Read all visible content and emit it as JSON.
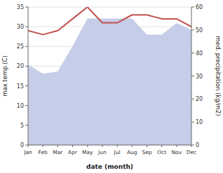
{
  "chart_data": {
    "type": "line",
    "x_label": "date (month)",
    "y_label": "max temp (C)",
    "y2_label": "med. precipitation (kg/m2)",
    "categories": [
      "Jan",
      "Feb",
      "Mar",
      "Apr",
      "May",
      "Jun",
      "Jul",
      "Aug",
      "Sep",
      "Oct",
      "Nov",
      "Dec"
    ],
    "series": [
      {
        "type": "area",
        "axis": "y2",
        "color": "#c5cde8",
        "values": [
          35,
          31,
          32,
          43,
          55,
          55,
          55,
          55,
          48,
          48,
          53,
          50
        ]
      },
      {
        "type": "line",
        "color": "#c0504d",
        "values": [
          29,
          28,
          29,
          32,
          35,
          31,
          31,
          33,
          33,
          32,
          32,
          30
        ]
      }
    ],
    "ylim": [
      0,
      35
    ],
    "yticks": [
      0,
      5,
      10,
      15,
      20,
      25,
      30,
      35
    ],
    "y2lim": [
      0,
      60
    ],
    "y2ticks": [
      0,
      10,
      20,
      30,
      40,
      50,
      60
    ],
    "grid": true
  }
}
